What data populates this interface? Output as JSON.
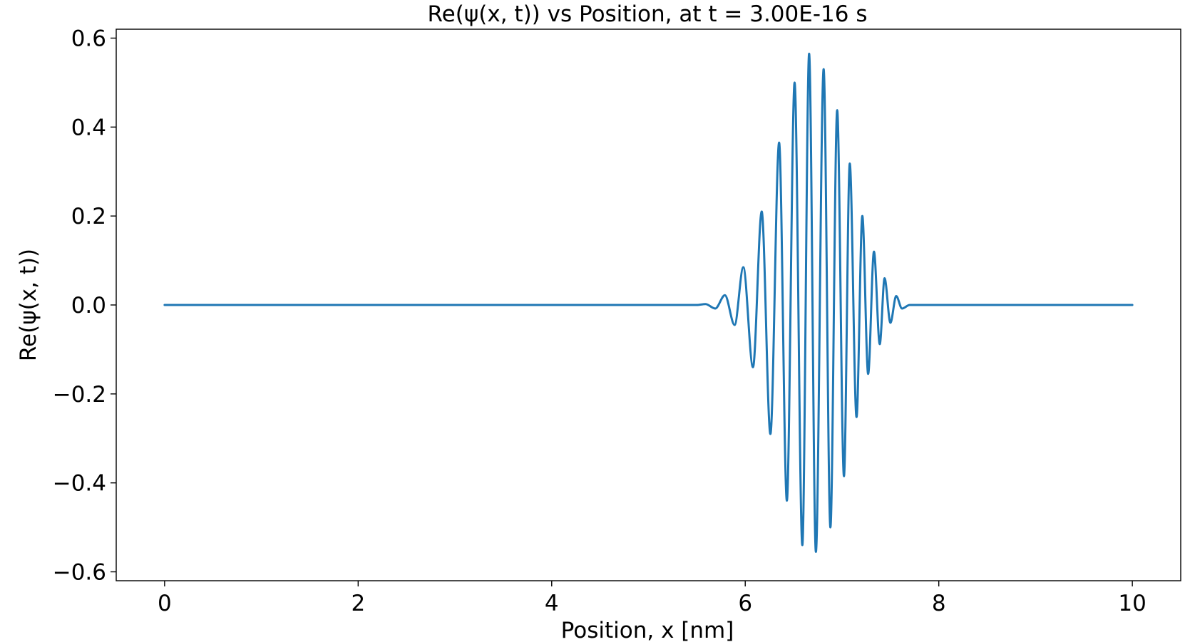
{
  "chart_data": {
    "type": "line",
    "title": "Re(ψ(x, t)) vs Position, at t = 3.00E-16 s",
    "xlabel": "Position, x [nm]",
    "ylabel": "Re(ψ(x, t))",
    "xlim": [
      -0.5,
      10.5
    ],
    "ylim": [
      -0.62,
      0.62
    ],
    "xticks": [
      0,
      2,
      4,
      6,
      8,
      10
    ],
    "xtick_labels": [
      "0",
      "2",
      "4",
      "6",
      "8",
      "10"
    ],
    "yticks": [
      -0.6,
      -0.4,
      -0.2,
      0.0,
      0.2,
      0.4,
      0.6
    ],
    "ytick_labels": [
      "−0.6",
      "−0.4",
      "−0.2",
      "0.0",
      "0.2",
      "0.4",
      "0.6"
    ],
    "grid": false,
    "line_color": "#1f77b4",
    "series": [
      {
        "x": [
          0,
          5.5,
          5.59,
          5.69,
          5.79,
          5.89,
          5.98,
          6.08,
          6.17,
          6.26,
          6.35,
          6.43,
          6.51,
          6.59,
          6.66,
          6.73,
          6.81,
          6.88,
          6.95,
          7.02,
          7.08,
          7.15,
          7.21,
          7.27,
          7.33,
          7.39,
          7.44,
          7.5,
          7.56,
          7.62,
          7.7,
          10
        ],
        "y": [
          0,
          0.0,
          0.002,
          -0.008,
          0.022,
          -0.045,
          0.085,
          -0.14,
          0.21,
          -0.29,
          0.365,
          -0.44,
          0.5,
          -0.54,
          0.565,
          -0.555,
          0.53,
          -0.5,
          0.438,
          -0.385,
          0.318,
          -0.252,
          0.2,
          -0.155,
          0.12,
          -0.088,
          0.06,
          -0.04,
          0.02,
          -0.008,
          0.0,
          0
        ]
      }
    ]
  }
}
